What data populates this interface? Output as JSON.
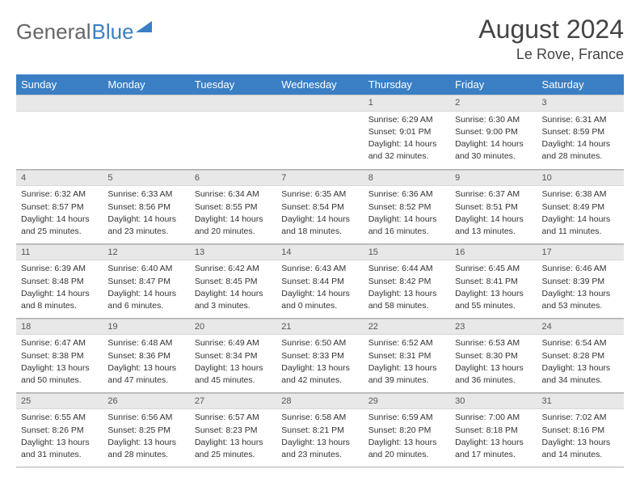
{
  "logo": {
    "part1": "General",
    "part2": "Blue"
  },
  "header": {
    "month": "August 2024",
    "location": "Le Rove, France"
  },
  "colors": {
    "header_bg": "#3a7fc4",
    "header_text": "#ffffff",
    "daynum_bg": "#e8e8e8",
    "border": "#b0b0b0"
  },
  "weekdays": [
    "Sunday",
    "Monday",
    "Tuesday",
    "Wednesday",
    "Thursday",
    "Friday",
    "Saturday"
  ],
  "weeks": [
    [
      null,
      null,
      null,
      null,
      {
        "n": "1",
        "sunrise": "Sunrise: 6:29 AM",
        "sunset": "Sunset: 9:01 PM",
        "day1": "Daylight: 14 hours",
        "day2": "and 32 minutes."
      },
      {
        "n": "2",
        "sunrise": "Sunrise: 6:30 AM",
        "sunset": "Sunset: 9:00 PM",
        "day1": "Daylight: 14 hours",
        "day2": "and 30 minutes."
      },
      {
        "n": "3",
        "sunrise": "Sunrise: 6:31 AM",
        "sunset": "Sunset: 8:59 PM",
        "day1": "Daylight: 14 hours",
        "day2": "and 28 minutes."
      }
    ],
    [
      {
        "n": "4",
        "sunrise": "Sunrise: 6:32 AM",
        "sunset": "Sunset: 8:57 PM",
        "day1": "Daylight: 14 hours",
        "day2": "and 25 minutes."
      },
      {
        "n": "5",
        "sunrise": "Sunrise: 6:33 AM",
        "sunset": "Sunset: 8:56 PM",
        "day1": "Daylight: 14 hours",
        "day2": "and 23 minutes."
      },
      {
        "n": "6",
        "sunrise": "Sunrise: 6:34 AM",
        "sunset": "Sunset: 8:55 PM",
        "day1": "Daylight: 14 hours",
        "day2": "and 20 minutes."
      },
      {
        "n": "7",
        "sunrise": "Sunrise: 6:35 AM",
        "sunset": "Sunset: 8:54 PM",
        "day1": "Daylight: 14 hours",
        "day2": "and 18 minutes."
      },
      {
        "n": "8",
        "sunrise": "Sunrise: 6:36 AM",
        "sunset": "Sunset: 8:52 PM",
        "day1": "Daylight: 14 hours",
        "day2": "and 16 minutes."
      },
      {
        "n": "9",
        "sunrise": "Sunrise: 6:37 AM",
        "sunset": "Sunset: 8:51 PM",
        "day1": "Daylight: 14 hours",
        "day2": "and 13 minutes."
      },
      {
        "n": "10",
        "sunrise": "Sunrise: 6:38 AM",
        "sunset": "Sunset: 8:49 PM",
        "day1": "Daylight: 14 hours",
        "day2": "and 11 minutes."
      }
    ],
    [
      {
        "n": "11",
        "sunrise": "Sunrise: 6:39 AM",
        "sunset": "Sunset: 8:48 PM",
        "day1": "Daylight: 14 hours",
        "day2": "and 8 minutes."
      },
      {
        "n": "12",
        "sunrise": "Sunrise: 6:40 AM",
        "sunset": "Sunset: 8:47 PM",
        "day1": "Daylight: 14 hours",
        "day2": "and 6 minutes."
      },
      {
        "n": "13",
        "sunrise": "Sunrise: 6:42 AM",
        "sunset": "Sunset: 8:45 PM",
        "day1": "Daylight: 14 hours",
        "day2": "and 3 minutes."
      },
      {
        "n": "14",
        "sunrise": "Sunrise: 6:43 AM",
        "sunset": "Sunset: 8:44 PM",
        "day1": "Daylight: 14 hours",
        "day2": "and 0 minutes."
      },
      {
        "n": "15",
        "sunrise": "Sunrise: 6:44 AM",
        "sunset": "Sunset: 8:42 PM",
        "day1": "Daylight: 13 hours",
        "day2": "and 58 minutes."
      },
      {
        "n": "16",
        "sunrise": "Sunrise: 6:45 AM",
        "sunset": "Sunset: 8:41 PM",
        "day1": "Daylight: 13 hours",
        "day2": "and 55 minutes."
      },
      {
        "n": "17",
        "sunrise": "Sunrise: 6:46 AM",
        "sunset": "Sunset: 8:39 PM",
        "day1": "Daylight: 13 hours",
        "day2": "and 53 minutes."
      }
    ],
    [
      {
        "n": "18",
        "sunrise": "Sunrise: 6:47 AM",
        "sunset": "Sunset: 8:38 PM",
        "day1": "Daylight: 13 hours",
        "day2": "and 50 minutes."
      },
      {
        "n": "19",
        "sunrise": "Sunrise: 6:48 AM",
        "sunset": "Sunset: 8:36 PM",
        "day1": "Daylight: 13 hours",
        "day2": "and 47 minutes."
      },
      {
        "n": "20",
        "sunrise": "Sunrise: 6:49 AM",
        "sunset": "Sunset: 8:34 PM",
        "day1": "Daylight: 13 hours",
        "day2": "and 45 minutes."
      },
      {
        "n": "21",
        "sunrise": "Sunrise: 6:50 AM",
        "sunset": "Sunset: 8:33 PM",
        "day1": "Daylight: 13 hours",
        "day2": "and 42 minutes."
      },
      {
        "n": "22",
        "sunrise": "Sunrise: 6:52 AM",
        "sunset": "Sunset: 8:31 PM",
        "day1": "Daylight: 13 hours",
        "day2": "and 39 minutes."
      },
      {
        "n": "23",
        "sunrise": "Sunrise: 6:53 AM",
        "sunset": "Sunset: 8:30 PM",
        "day1": "Daylight: 13 hours",
        "day2": "and 36 minutes."
      },
      {
        "n": "24",
        "sunrise": "Sunrise: 6:54 AM",
        "sunset": "Sunset: 8:28 PM",
        "day1": "Daylight: 13 hours",
        "day2": "and 34 minutes."
      }
    ],
    [
      {
        "n": "25",
        "sunrise": "Sunrise: 6:55 AM",
        "sunset": "Sunset: 8:26 PM",
        "day1": "Daylight: 13 hours",
        "day2": "and 31 minutes."
      },
      {
        "n": "26",
        "sunrise": "Sunrise: 6:56 AM",
        "sunset": "Sunset: 8:25 PM",
        "day1": "Daylight: 13 hours",
        "day2": "and 28 minutes."
      },
      {
        "n": "27",
        "sunrise": "Sunrise: 6:57 AM",
        "sunset": "Sunset: 8:23 PM",
        "day1": "Daylight: 13 hours",
        "day2": "and 25 minutes."
      },
      {
        "n": "28",
        "sunrise": "Sunrise: 6:58 AM",
        "sunset": "Sunset: 8:21 PM",
        "day1": "Daylight: 13 hours",
        "day2": "and 23 minutes."
      },
      {
        "n": "29",
        "sunrise": "Sunrise: 6:59 AM",
        "sunset": "Sunset: 8:20 PM",
        "day1": "Daylight: 13 hours",
        "day2": "and 20 minutes."
      },
      {
        "n": "30",
        "sunrise": "Sunrise: 7:00 AM",
        "sunset": "Sunset: 8:18 PM",
        "day1": "Daylight: 13 hours",
        "day2": "and 17 minutes."
      },
      {
        "n": "31",
        "sunrise": "Sunrise: 7:02 AM",
        "sunset": "Sunset: 8:16 PM",
        "day1": "Daylight: 13 hours",
        "day2": "and 14 minutes."
      }
    ]
  ]
}
